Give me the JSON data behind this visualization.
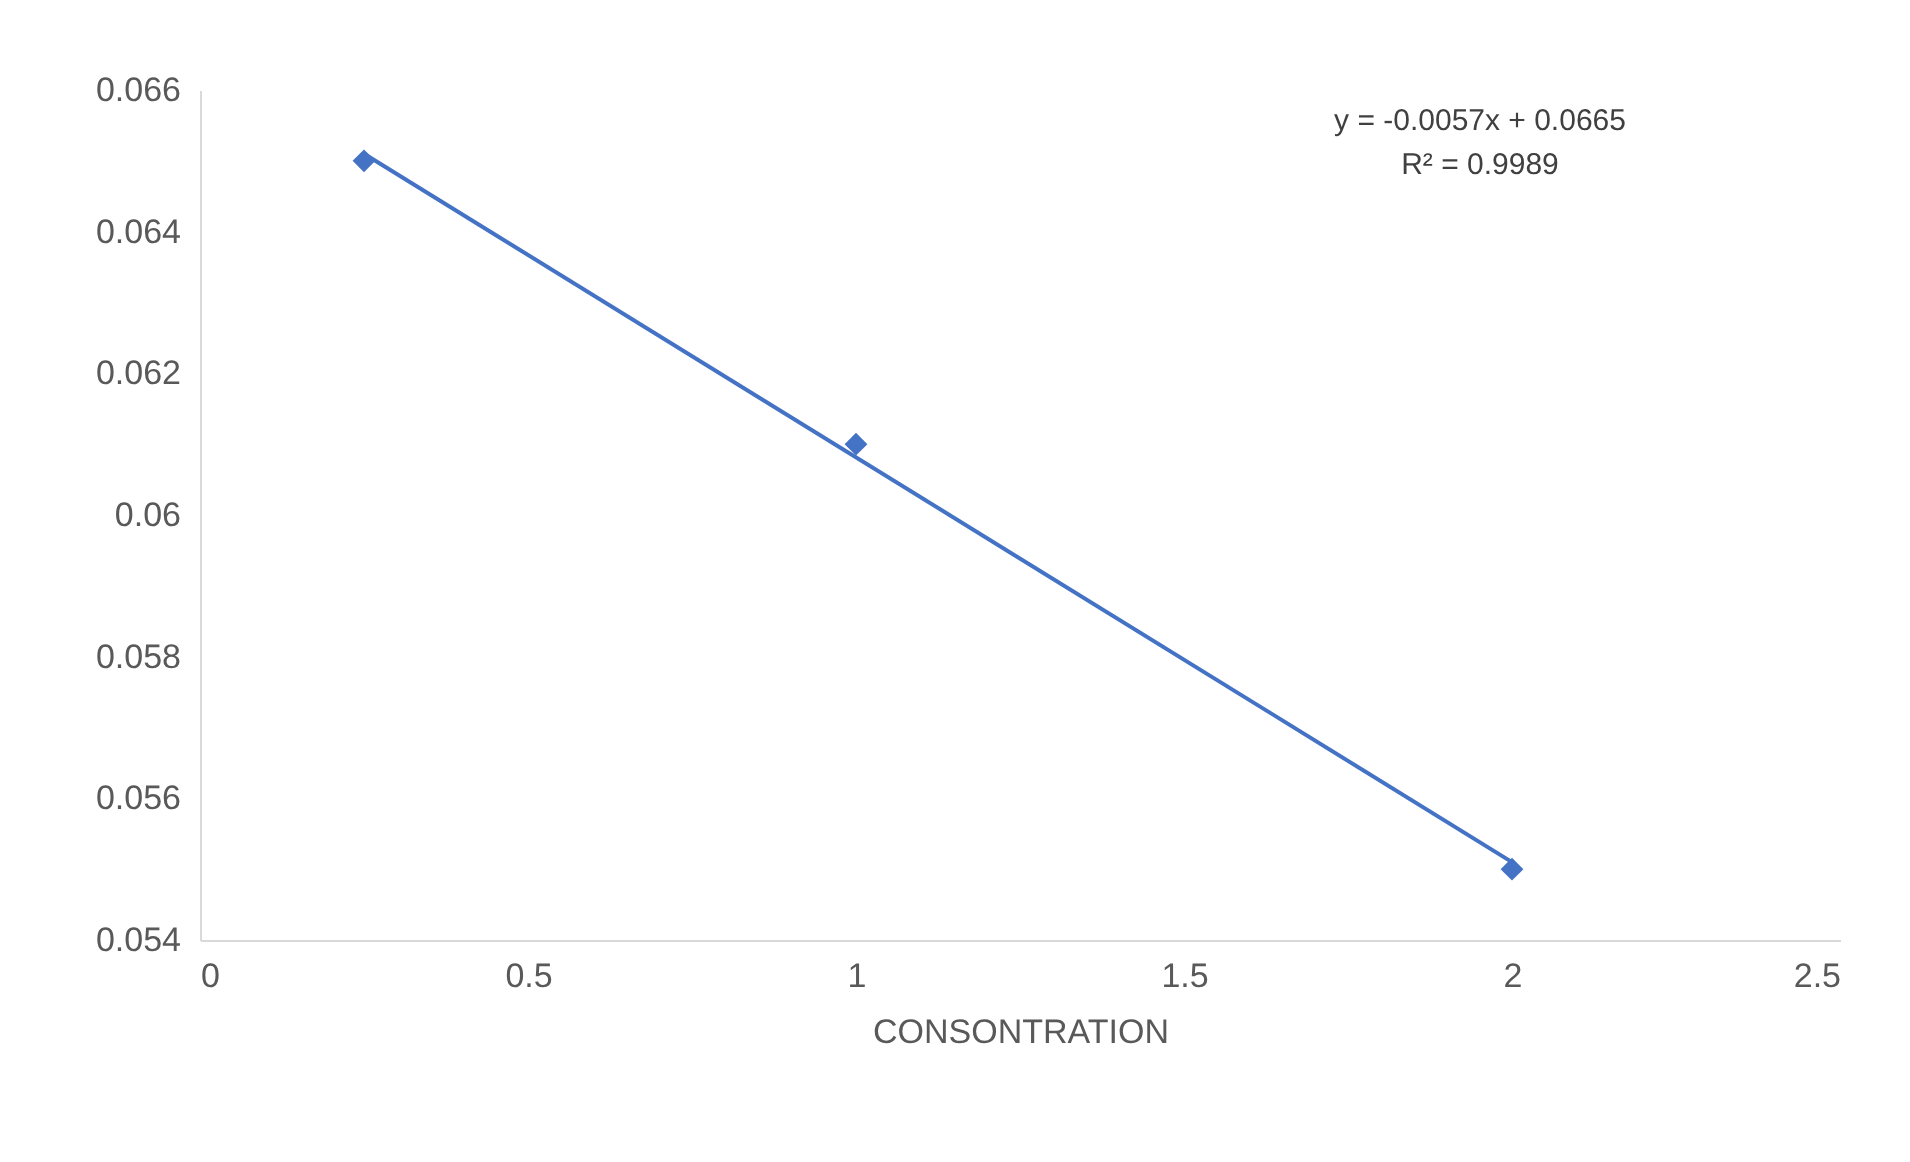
{
  "chart_data": {
    "type": "scatter",
    "xlabel": "CONSONTRATION",
    "grid": false,
    "xlim": [
      0,
      2.5
    ],
    "xticks": [
      0,
      0.5,
      1,
      1.5,
      2,
      2.5
    ],
    "ylim": [
      0.054,
      0.066
    ],
    "yticks": [
      0.054,
      0.056,
      0.058,
      0.06,
      0.062,
      0.064,
      0.066
    ],
    "series": [
      {
        "marker": "diamond",
        "color": "#4472c4",
        "x": [
          0.25,
          1,
          2
        ],
        "values": [
          0.065,
          0.061,
          0.055
        ]
      },
      {
        "type": "line",
        "marker": "none",
        "color": "#4472c4",
        "x": [
          0.25,
          2
        ],
        "values": [
          0.0651,
          0.0551
        ]
      }
    ],
    "annotations": [
      "y = -0.0057x + 0.0665",
      "R² = 0.9989"
    ]
  }
}
